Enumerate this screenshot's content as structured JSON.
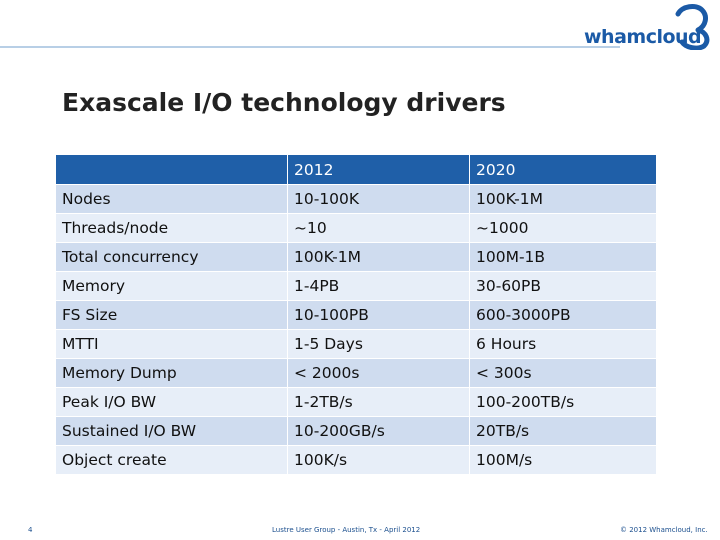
{
  "brand": {
    "logo_text": "whamcloud"
  },
  "slide": {
    "title": "Exascale I/O technology drivers"
  },
  "table": {
    "headers": [
      "",
      "2012",
      "2020"
    ],
    "rows": [
      [
        "Nodes",
        "10-100K",
        "100K-1M"
      ],
      [
        "Threads/node",
        "~10",
        "~1000"
      ],
      [
        "Total concurrency",
        "100K-1M",
        "100M-1B"
      ],
      [
        "Memory",
        "1-4PB",
        "30-60PB"
      ],
      [
        "FS Size",
        "10-100PB",
        "600-3000PB"
      ],
      [
        "MTTI",
        "1-5 Days",
        "6 Hours"
      ],
      [
        "Memory Dump",
        "< 2000s",
        "< 300s"
      ],
      [
        "Peak I/O BW",
        "1-2TB/s",
        "100-200TB/s"
      ],
      [
        "Sustained I/O BW",
        "10-200GB/s",
        "20TB/s"
      ],
      [
        "Object create",
        "100K/s",
        "100M/s"
      ]
    ]
  },
  "footer": {
    "slide_number": "4",
    "event": "Lustre User Group - Austin, Tx - April 2012",
    "copyright": "© 2012 Whamcloud, Inc."
  },
  "colors": {
    "header_bg": "#1f5fa8",
    "row_odd": "#cfdcef",
    "row_even": "#e7eef8",
    "brand": "#1b5aa6"
  }
}
